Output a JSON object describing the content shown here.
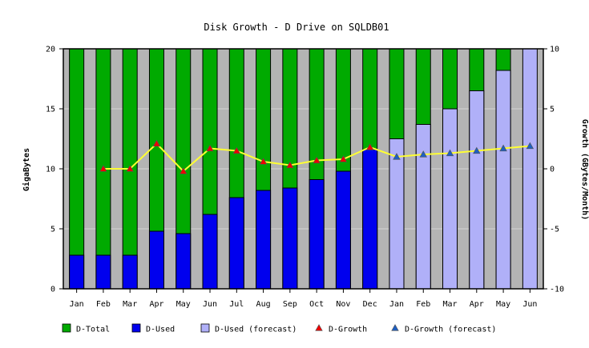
{
  "chart_data": {
    "type": "bar",
    "title": "Disk Growth - D Drive on SQLDB01",
    "ylabel": "GigaBytes",
    "y2label": "Growth (GBytes/Month)",
    "categories": [
      "Jan",
      "Feb",
      "Mar",
      "Apr",
      "May",
      "Jun",
      "Jul",
      "Aug",
      "Sep",
      "Oct",
      "Nov",
      "Dec",
      "Jan",
      "Feb",
      "Mar",
      "Apr",
      "May",
      "Jun"
    ],
    "ylim": [
      0,
      20
    ],
    "yticks": [
      0,
      5,
      10,
      15,
      20
    ],
    "y2lim": [
      -10,
      10
    ],
    "y2ticks": [
      -10,
      -5,
      0,
      5,
      10
    ],
    "grid": true,
    "legend_position": "bottom",
    "series": [
      {
        "name": "D-Total",
        "kind": "bar",
        "axis": "left",
        "color": "#00aa00",
        "values": [
          20,
          20,
          20,
          20,
          20,
          20,
          20,
          20,
          20,
          20,
          20,
          20,
          20,
          20,
          20,
          20,
          20,
          null
        ]
      },
      {
        "name": "D-Used",
        "kind": "bar",
        "axis": "left",
        "color": "#0000ee",
        "values": [
          2.8,
          2.8,
          2.8,
          4.8,
          4.6,
          6.2,
          7.6,
          8.2,
          8.4,
          9.1,
          9.8,
          11.6,
          null,
          null,
          null,
          null,
          null,
          null
        ]
      },
      {
        "name": "D-Used (forecast)",
        "kind": "bar",
        "axis": "left",
        "color": "#b0b0f8",
        "values": [
          null,
          null,
          null,
          null,
          null,
          null,
          null,
          null,
          null,
          null,
          null,
          null,
          12.5,
          13.7,
          15.0,
          16.5,
          18.2,
          20.0
        ]
      },
      {
        "name": "D-Growth",
        "kind": "line",
        "axis": "right",
        "color": "#ee0000",
        "values": [
          null,
          0,
          0,
          2.1,
          -0.2,
          1.7,
          1.5,
          0.6,
          0.3,
          0.7,
          0.8,
          1.8,
          null,
          null,
          null,
          null,
          null,
          null
        ]
      },
      {
        "name": "D-Growth (forecast)",
        "kind": "line",
        "axis": "right",
        "color": "#1f5fc0",
        "values": [
          null,
          null,
          null,
          null,
          null,
          null,
          null,
          null,
          null,
          null,
          null,
          null,
          1.0,
          1.2,
          1.3,
          1.5,
          1.7,
          1.9
        ]
      }
    ],
    "growth_line_color": "#ffff33",
    "plot_background": "#b4b4b4"
  }
}
